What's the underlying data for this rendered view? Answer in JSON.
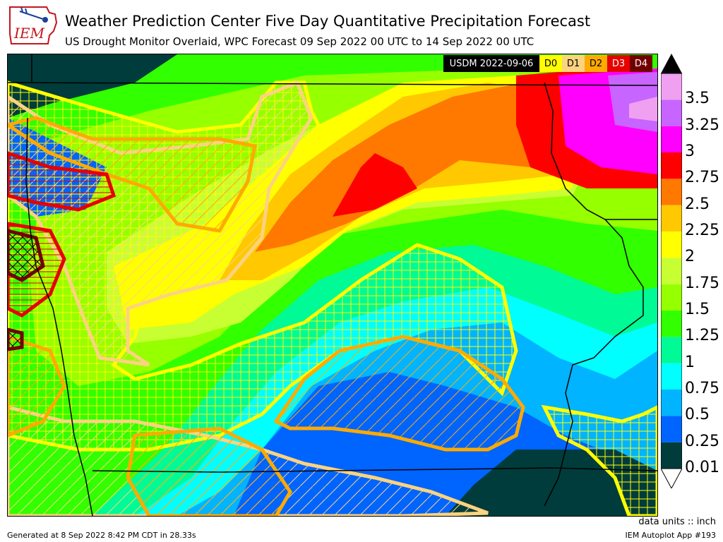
{
  "header": {
    "title": "Weather Prediction Center Five Day Quantitative Precipitation Forecast",
    "subtitle": "US Drought Monitor Overlaid, WPC Forecast 09 Sep 2022 00 UTC to 14 Sep 2022 00 UTC"
  },
  "logo": {
    "text": "IEM"
  },
  "usdm_legend": {
    "title": "USDM 2022-09-06",
    "categories": [
      {
        "label": "D0",
        "color": "#ffff00"
      },
      {
        "label": "D1",
        "color": "#fcd37f"
      },
      {
        "label": "D2",
        "color": "#ffaa00"
      },
      {
        "label": "D3",
        "color": "#e60000"
      },
      {
        "label": "D4",
        "color": "#730000"
      }
    ]
  },
  "colorbar": {
    "levels": [
      "0.01",
      "0.25",
      "0.5",
      "0.75",
      "1",
      "1.25",
      "1.5",
      "1.75",
      "2",
      "2.25",
      "2.5",
      "2.75",
      "3",
      "3.25",
      "3.5"
    ],
    "colors": [
      "#003c3c",
      "#0064ff",
      "#00b4ff",
      "#00ffff",
      "#00fa96",
      "#32ff00",
      "#96ff00",
      "#c8ff32",
      "#ffff00",
      "#ffc800",
      "#ff7800",
      "#ff0000",
      "#ff00ff",
      "#c864ff",
      "#f0a0f0"
    ],
    "under_color": "#ffffff",
    "over_color": "#000000"
  },
  "units": "data units :: inch",
  "footer": {
    "generated": "Generated at 8 Sep 2022 8:42 PM CDT in 28.33s",
    "app": "IEM Autoplot App #193"
  }
}
